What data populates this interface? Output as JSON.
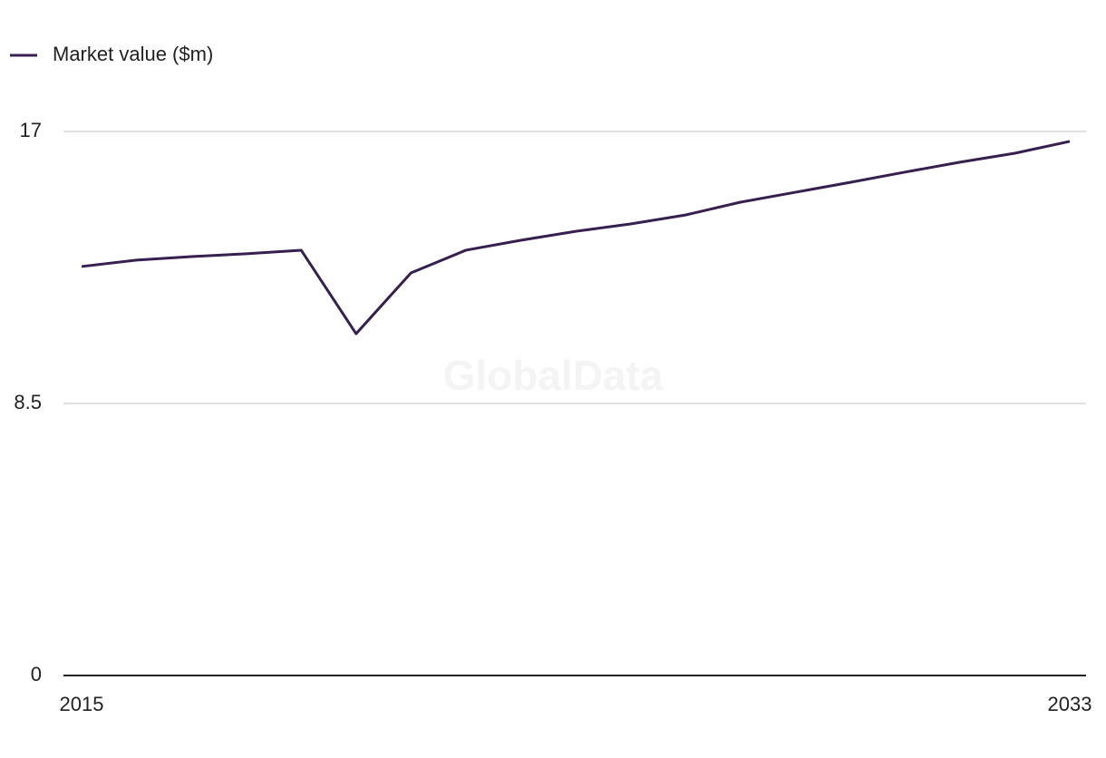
{
  "chart_data": {
    "type": "line",
    "watermark": "GlobalData",
    "x": [
      2015,
      2016,
      2017,
      2018,
      2019,
      2020,
      2021,
      2022,
      2023,
      2024,
      2025,
      2026,
      2027,
      2028,
      2029,
      2030,
      2031,
      2032,
      2033
    ],
    "series": [
      {
        "name": "Market value ($m)",
        "color": "#35204f",
        "values": [
          12.78,
          12.98,
          13.09,
          13.18,
          13.29,
          10.68,
          12.58,
          13.29,
          13.6,
          13.88,
          14.11,
          14.39,
          14.79,
          15.1,
          15.41,
          15.73,
          16.04,
          16.32,
          16.69
        ]
      }
    ],
    "xlim": [
      2015,
      2033
    ],
    "xticks": [
      2015,
      2033
    ],
    "ylim": [
      0,
      17
    ],
    "yticks": [
      0,
      8.5,
      17
    ],
    "grid": true,
    "legend": "top-left"
  }
}
